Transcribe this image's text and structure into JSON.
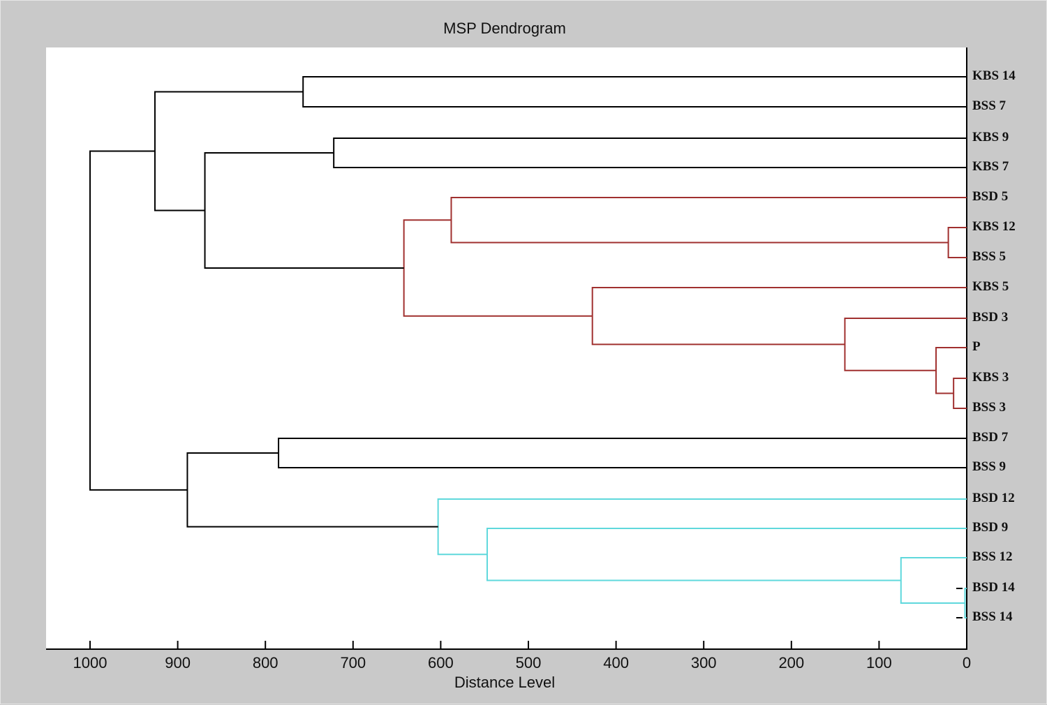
{
  "chart_data": {
    "type": "dendrogram",
    "title": "MSP Dendrogram",
    "xlabel": "Distance Level",
    "ylabel": "",
    "xlim": [
      1000,
      0
    ],
    "x_ticks": [
      1000,
      900,
      800,
      700,
      600,
      500,
      400,
      300,
      200,
      100,
      0
    ],
    "orientation": "horizontal, leaves on right",
    "leaves": [
      "KBS 14",
      "BSS 7",
      "KBS 9",
      "KBS 7",
      "BSD 5",
      "KBS 12",
      "BSS 5",
      "KBS 5",
      "BSD 3",
      "P",
      "KBS 3",
      "BSS 3",
      "BSD 7",
      "BSS 9",
      "BSD 12",
      "BSD 9",
      "BSS 12",
      "BSD 14",
      "BSS 14"
    ],
    "merges": [
      {
        "a": "BSD 14",
        "b": "BSS 14",
        "distance": 2,
        "color": "cyan"
      },
      {
        "a": "KBS 3",
        "b": "BSS 3",
        "distance": 15,
        "color": "red"
      },
      {
        "a": "KBS 12",
        "b": "BSS 5",
        "distance": 21,
        "color": "red"
      },
      {
        "a": "P",
        "b": "(KBS 3, BSS 3)",
        "distance": 35,
        "color": "red"
      },
      {
        "a": "BSS 12",
        "b": "(BSD 14, BSS 14)",
        "distance": 75,
        "color": "cyan"
      },
      {
        "a": "BSD 3",
        "b": "(P, KBS 3, BSS 3)",
        "distance": 139,
        "color": "red"
      },
      {
        "a": "KBS 5",
        "b": "(BSD 3, P, KBS 3, BSS 3)",
        "distance": 427,
        "color": "red"
      },
      {
        "a": "BSD 9",
        "b": "(BSS 12, BSD 14, BSS 14)",
        "distance": 547,
        "color": "cyan"
      },
      {
        "a": "BSD 5",
        "b": "(KBS 12, BSS 5)",
        "distance": 588,
        "color": "red"
      },
      {
        "a": "BSD 12",
        "b": "(BSD 9, BSS 12, BSD 14, BSS 14)",
        "distance": 603,
        "color": "cyan"
      },
      {
        "a": "(BSD 5, KBS 12, BSS 5)",
        "b": "(KBS 5, BSD 3, P, KBS 3, BSS 3)",
        "distance": 642,
        "color": "red"
      },
      {
        "a": "KBS 9",
        "b": "KBS 7",
        "distance": 722,
        "color": "black"
      },
      {
        "a": "KBS 14",
        "b": "BSS 7",
        "distance": 757,
        "color": "black"
      },
      {
        "a": "BSD 7",
        "b": "BSS 9",
        "distance": 785,
        "color": "black"
      },
      {
        "a": "(KBS 9, KBS 7)",
        "b": "red cluster",
        "distance": 869,
        "color": "black"
      },
      {
        "a": "(BSD 7, BSS 9)",
        "b": "cyan cluster",
        "distance": 889,
        "color": "black"
      },
      {
        "a": "(KBS 14, BSS 7)",
        "b": "(KBS 9, KBS 7, red cluster)",
        "distance": 926,
        "color": "black"
      },
      {
        "a": "upper group",
        "b": "lower group",
        "distance": 1000,
        "color": "black"
      }
    ],
    "colors": {
      "black": "#000000",
      "red": "#a0302f",
      "cyan": "#5fd8dc"
    },
    "grid": false,
    "legend": null
  }
}
